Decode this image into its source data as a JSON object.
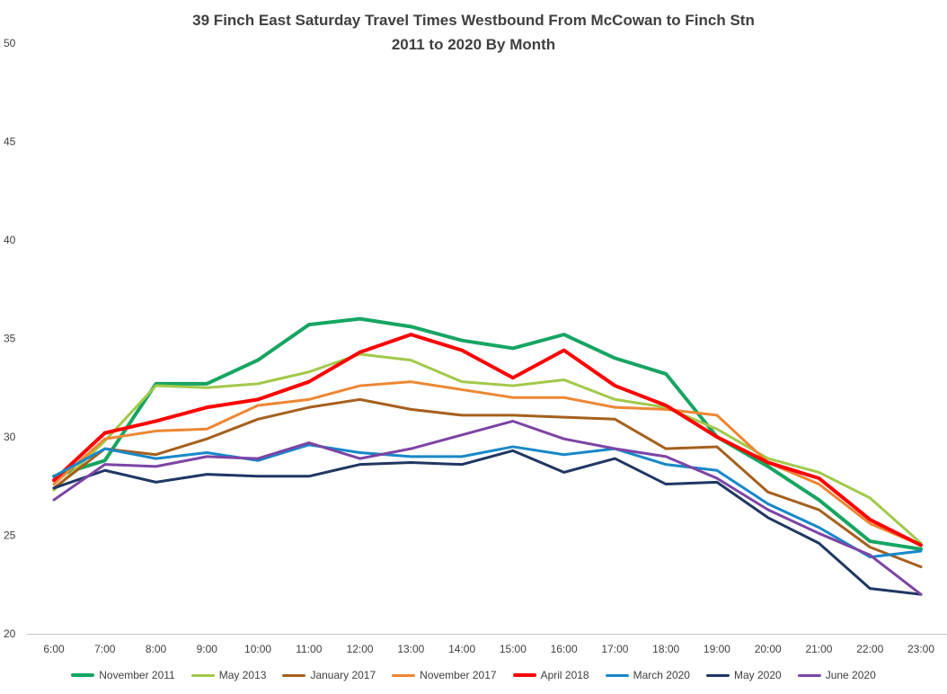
{
  "colors": {
    "text": "#404040",
    "axis_line": "#C6C6C6",
    "background": "#FFFFFF"
  },
  "chart_data": {
    "type": "line",
    "title_lines": [
      "39 Finch East Saturday Travel Times Westbound From McCowan to Finch Stn",
      "2011 to 2020 By Month"
    ],
    "x": [
      "6:00",
      "7:00",
      "8:00",
      "9:00",
      "10:00",
      "11:00",
      "12:00",
      "13:00",
      "14:00",
      "15:00",
      "16:00",
      "17:00",
      "18:00",
      "19:00",
      "20:00",
      "21:00",
      "22:00",
      "23:00"
    ],
    "xlabel": "",
    "ylabel": "",
    "ylim": [
      20,
      50
    ],
    "yticks": [
      20,
      25,
      30,
      35,
      40,
      45,
      50
    ],
    "grid": false,
    "legend_position": "bottom",
    "series": [
      {
        "name": "November 2011",
        "color": "#16A562",
        "width": 4,
        "values": [
          28.0,
          28.8,
          32.7,
          32.7,
          33.9,
          35.7,
          36.0,
          35.6,
          34.9,
          34.5,
          35.2,
          34.0,
          33.2,
          30.0,
          28.5,
          26.8,
          24.7,
          24.3
        ]
      },
      {
        "name": "May 2013",
        "color": "#A2C94A",
        "width": 3,
        "values": [
          27.3,
          29.8,
          32.6,
          32.5,
          32.7,
          33.3,
          34.2,
          33.9,
          32.8,
          32.6,
          32.9,
          31.9,
          31.5,
          30.4,
          28.9,
          28.2,
          26.9,
          24.6
        ]
      },
      {
        "name": "January 2017",
        "color": "#A6601D",
        "width": 3,
        "values": [
          27.4,
          29.4,
          29.1,
          29.9,
          30.9,
          31.5,
          31.9,
          31.4,
          31.1,
          31.1,
          31.0,
          30.9,
          29.4,
          29.5,
          27.2,
          26.3,
          24.4,
          23.4
        ]
      },
      {
        "name": "November 2017",
        "color": "#ED8733",
        "width": 3,
        "values": [
          27.6,
          29.9,
          30.3,
          30.4,
          31.6,
          31.9,
          32.6,
          32.8,
          32.4,
          32.0,
          32.0,
          31.5,
          31.4,
          31.1,
          28.7,
          27.6,
          25.6,
          24.5
        ]
      },
      {
        "name": "April 2018",
        "color": "#FF0000",
        "width": 4,
        "values": [
          27.8,
          30.2,
          30.8,
          31.5,
          31.9,
          32.8,
          34.3,
          35.2,
          34.4,
          33.0,
          34.4,
          32.6,
          31.6,
          30.0,
          28.7,
          27.9,
          25.8,
          24.5
        ]
      },
      {
        "name": "March 2020",
        "color": "#1788C9",
        "width": 3,
        "values": [
          28.0,
          29.4,
          28.9,
          29.2,
          28.8,
          29.6,
          29.2,
          29.0,
          29.0,
          29.5,
          29.1,
          29.4,
          28.6,
          28.3,
          26.6,
          25.4,
          23.9,
          24.2
        ]
      },
      {
        "name": "May 2020",
        "color": "#203764",
        "width": 3,
        "values": [
          27.4,
          28.3,
          27.7,
          28.1,
          28.0,
          28.0,
          28.6,
          28.7,
          28.6,
          29.3,
          28.2,
          28.9,
          27.6,
          27.7,
          25.9,
          24.6,
          22.3,
          22.0
        ]
      },
      {
        "name": "June 2020",
        "color": "#7D44A5",
        "width": 3,
        "values": [
          26.8,
          28.6,
          28.5,
          29.0,
          28.9,
          29.7,
          28.9,
          29.4,
          30.1,
          30.8,
          29.9,
          29.4,
          29.0,
          27.9,
          26.3,
          25.1,
          24.0,
          22.0
        ]
      }
    ]
  }
}
